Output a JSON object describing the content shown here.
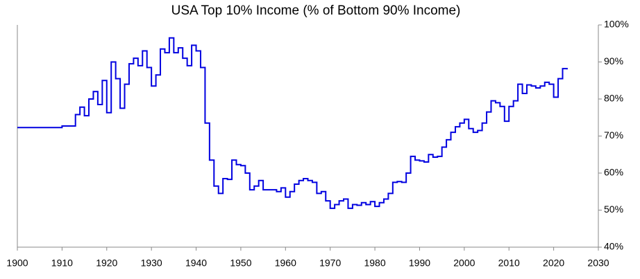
{
  "chart_data": {
    "type": "line",
    "step": true,
    "title": "USA Top 10% Income (% of Bottom 90% Income)",
    "x": [
      1900,
      1910,
      1913,
      1914,
      1915,
      1916,
      1917,
      1918,
      1919,
      1920,
      1921,
      1922,
      1923,
      1924,
      1925,
      1926,
      1927,
      1928,
      1929,
      1930,
      1931,
      1932,
      1933,
      1934,
      1935,
      1936,
      1937,
      1938,
      1939,
      1940,
      1941,
      1942,
      1943,
      1944,
      1945,
      1946,
      1947,
      1948,
      1949,
      1950,
      1951,
      1952,
      1953,
      1954,
      1955,
      1956,
      1957,
      1958,
      1959,
      1960,
      1961,
      1962,
      1963,
      1964,
      1965,
      1966,
      1967,
      1968,
      1969,
      1970,
      1971,
      1972,
      1973,
      1974,
      1975,
      1976,
      1977,
      1978,
      1979,
      1980,
      1981,
      1982,
      1983,
      1984,
      1985,
      1986,
      1987,
      1988,
      1989,
      1990,
      1991,
      1992,
      1993,
      1994,
      1995,
      1996,
      1997,
      1998,
      1999,
      2000,
      2001,
      2002,
      2003,
      2004,
      2005,
      2006,
      2007,
      2008,
      2009,
      2010,
      2011,
      2012,
      2013,
      2014,
      2015,
      2016,
      2017,
      2018,
      2019,
      2020,
      2021,
      2022,
      2023
    ],
    "series": [
      {
        "name": "USA Top 10% Income",
        "color": "#0000e0",
        "values": [
          72.3,
          72.7,
          75.8,
          77.8,
          75.5,
          80,
          82,
          78.5,
          85,
          76.3,
          90,
          85.5,
          77.5,
          84,
          89.5,
          91,
          89,
          93,
          88.5,
          83.5,
          86.5,
          93.5,
          92.5,
          96.5,
          92.5,
          93.8,
          91,
          89,
          94.5,
          93,
          88.5,
          73.5,
          63.5,
          56.5,
          54.5,
          58.5,
          58.3,
          63.5,
          62.3,
          62,
          60,
          55.5,
          56.5,
          58,
          55.5,
          55.5,
          55.5,
          55,
          56,
          53.5,
          55,
          57,
          58,
          58.5,
          58,
          57.5,
          54.5,
          55,
          52.5,
          50.5,
          51.5,
          52.5,
          53,
          50.5,
          51.5,
          51.3,
          52,
          51.5,
          52.3,
          51,
          52,
          53,
          54.5,
          57.5,
          57.7,
          57.5,
          60,
          64.5,
          63.5,
          63.3,
          63,
          65,
          64.3,
          64.5,
          67,
          69,
          71,
          72.5,
          73.5,
          74.5,
          72,
          71,
          71.5,
          73.5,
          76.5,
          79.5,
          79,
          78,
          74,
          78,
          79.5,
          84,
          81.5,
          83.8,
          83.5,
          83,
          83.5,
          84.5,
          84,
          80.5,
          85.5,
          88.2,
          88
        ]
      }
    ],
    "xlim": [
      1900,
      2030
    ],
    "xticks": [
      1900,
      1910,
      1920,
      1930,
      1940,
      1950,
      1960,
      1970,
      1980,
      1990,
      2000,
      2010,
      2020,
      2030
    ],
    "ylim": [
      40,
      100
    ],
    "yticks": [
      {
        "value": 40,
        "label": "40%"
      },
      {
        "value": 50,
        "label": "50%"
      },
      {
        "value": 60,
        "label": "60%"
      },
      {
        "value": 70,
        "label": "70%"
      },
      {
        "value": 80,
        "label": "80%"
      },
      {
        "value": 90,
        "label": "90%"
      },
      {
        "value": 100,
        "label": "100%"
      }
    ],
    "grid": false,
    "y_axis_side": "right"
  }
}
